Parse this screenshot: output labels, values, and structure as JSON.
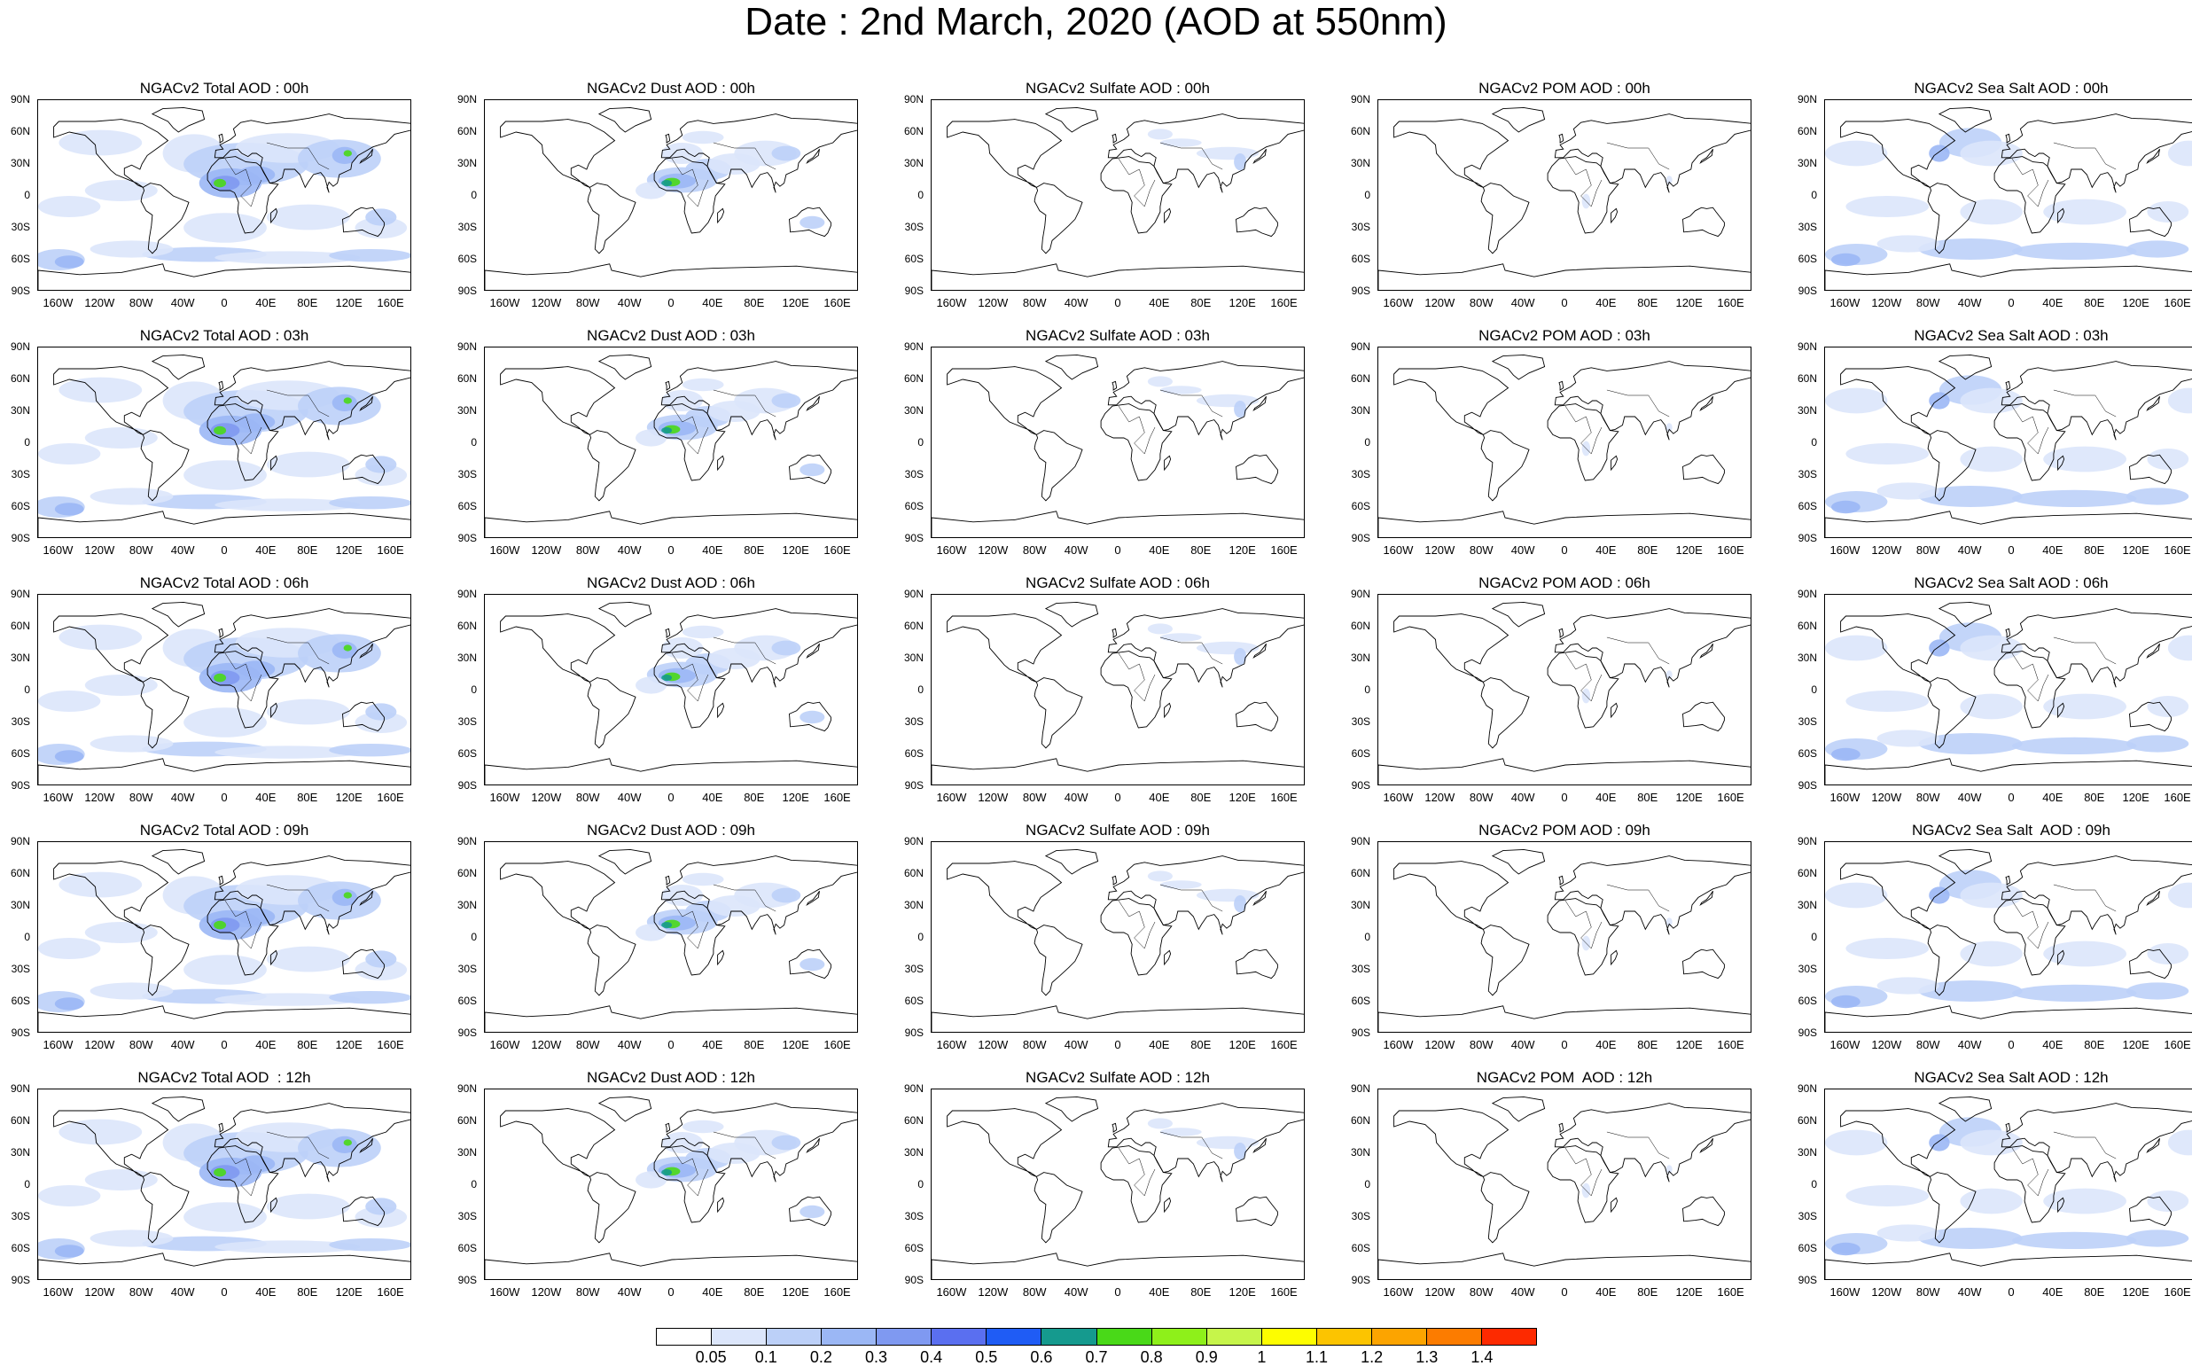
{
  "title": "Date : 2nd March, 2020 (AOD at 550nm)",
  "lat_ticks": [
    "90N",
    "60N",
    "30N",
    "0",
    "30S",
    "60S",
    "90S"
  ],
  "lon_ticks": [
    "160W",
    "120W",
    "80W",
    "40W",
    "0",
    "40E",
    "80E",
    "120E",
    "160E"
  ],
  "panel_titles": [
    [
      "NGACv2 Total AOD : 00h",
      "NGACv2 Dust AOD : 00h",
      "NGACv2 Sulfate AOD : 00h",
      "NGACv2 POM AOD : 00h",
      "NGACv2 Sea Salt AOD : 00h"
    ],
    [
      "NGACv2 Total AOD : 03h",
      "NGACv2 Dust AOD : 03h",
      "NGACv2 Sulfate AOD : 03h",
      "NGACv2 POM AOD : 03h",
      "NGACv2 Sea Salt AOD : 03h"
    ],
    [
      "NGACv2 Total AOD : 06h",
      "NGACv2 Dust AOD : 06h",
      "NGACv2 Sulfate AOD : 06h",
      "NGACv2 POM AOD : 06h",
      "NGACv2 Sea Salt AOD : 06h"
    ],
    [
      "NGACv2 Total AOD : 09h",
      "NGACv2 Dust AOD : 09h",
      "NGACv2 Sulfate AOD : 09h",
      "NGACv2 POM AOD : 09h",
      "NGACv2 Sea Salt  AOD : 09h"
    ],
    [
      "NGACv2 Total AOD  : 12h",
      "NGACv2 Dust AOD : 12h",
      "NGACv2 Sulfate AOD : 12h",
      "NGACv2 POM  AOD : 12h",
      "NGACv2 Sea Salt AOD : 12h"
    ]
  ],
  "colorbar": {
    "labels": [
      "0.05",
      "0.1",
      "0.2",
      "0.3",
      "0.4",
      "0.5",
      "0.6",
      "0.7",
      "0.8",
      "0.9",
      "1",
      "1.1",
      "1.2",
      "1.3",
      "1.4"
    ],
    "colors": [
      "#ffffff",
      "#dce6fb",
      "#bcd0f8",
      "#9bb7f5",
      "#7f99f1",
      "#5a6ff0",
      "#1f5cf5",
      "#159a8e",
      "#49d918",
      "#8ef01a",
      "#c6f54a",
      "#fdfd00",
      "#fcc400",
      "#fca400",
      "#fc7c00",
      "#fd2a00"
    ]
  }
}
